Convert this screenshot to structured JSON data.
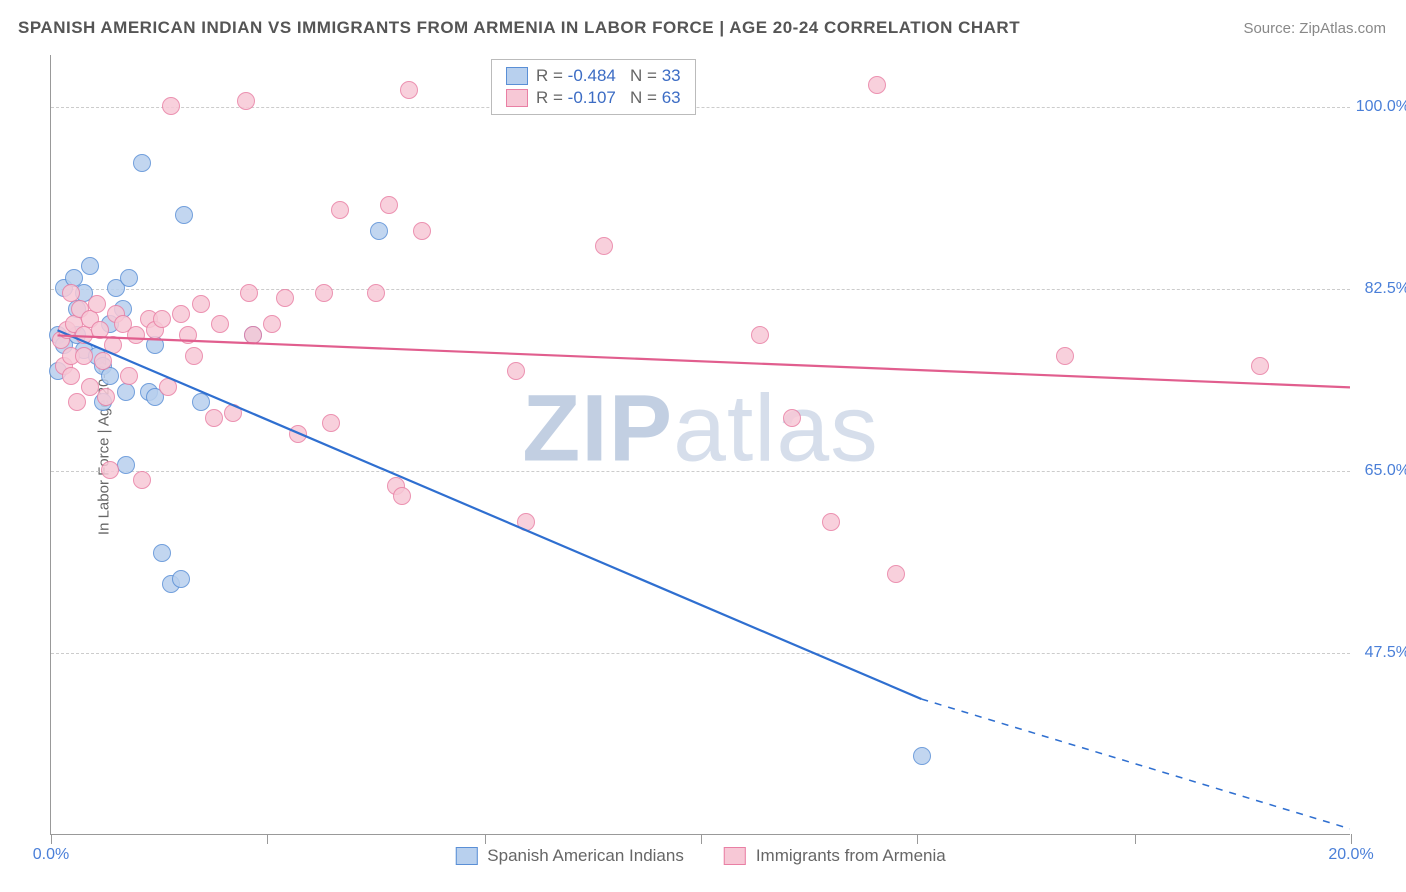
{
  "title": "SPANISH AMERICAN INDIAN VS IMMIGRANTS FROM ARMENIA IN LABOR FORCE | AGE 20-24 CORRELATION CHART",
  "source": "Source: ZipAtlas.com",
  "watermark_a": "ZIP",
  "watermark_b": "atlas",
  "y_axis_title": "In Labor Force | Age 20-24",
  "chart": {
    "type": "scatter",
    "xlim": [
      0,
      20
    ],
    "ylim": [
      30,
      105
    ],
    "x_ticks": [
      0,
      3.33,
      6.67,
      10,
      13.33,
      16.67,
      20
    ],
    "x_tick_labels": {
      "0": "0.0%",
      "20": "20.0%"
    },
    "y_gridlines": [
      47.5,
      65.0,
      82.5,
      100.0
    ],
    "y_tick_labels": [
      "47.5%",
      "65.0%",
      "82.5%",
      "100.0%"
    ],
    "grid_color": "#cccccc",
    "axis_color": "#999999",
    "background_color": "#ffffff",
    "marker_radius": 9,
    "marker_stroke_width": 1.6,
    "line_width": 2.2,
    "series": [
      {
        "name": "Spanish American Indians",
        "fill": "#b8d0ee",
        "stroke": "#5a8fd6",
        "fill_opacity": 0.55,
        "line_color": "#2f6fd0",
        "R": "-0.484",
        "N": "33",
        "trend": {
          "x1": 0.1,
          "y1": 78.5,
          "x2": 13.4,
          "y2": 43.0,
          "dash_x2": 20,
          "dash_y2": 30.5
        },
        "points": [
          [
            0.1,
            78
          ],
          [
            0.1,
            74.5
          ],
          [
            0.2,
            77
          ],
          [
            0.2,
            82.5
          ],
          [
            0.35,
            83.5
          ],
          [
            0.4,
            80.5
          ],
          [
            0.4,
            78
          ],
          [
            0.5,
            82
          ],
          [
            0.5,
            76.5
          ],
          [
            0.6,
            84.6
          ],
          [
            0.7,
            76
          ],
          [
            0.8,
            75
          ],
          [
            0.8,
            71.5
          ],
          [
            0.9,
            74
          ],
          [
            0.9,
            79
          ],
          [
            1.0,
            82.5
          ],
          [
            1.1,
            80.5
          ],
          [
            1.15,
            72.5
          ],
          [
            1.15,
            65.5
          ],
          [
            1.2,
            83.5
          ],
          [
            1.4,
            94.5
          ],
          [
            1.5,
            72.5
          ],
          [
            1.6,
            77
          ],
          [
            1.6,
            72
          ],
          [
            1.7,
            57
          ],
          [
            1.85,
            54
          ],
          [
            2.0,
            54.5
          ],
          [
            2.05,
            89.5
          ],
          [
            2.3,
            71.5
          ],
          [
            3.1,
            78
          ],
          [
            5.05,
            88
          ],
          [
            13.4,
            37.5
          ]
        ]
      },
      {
        "name": "Immigrants from Armenia",
        "fill": "#f7c8d6",
        "stroke": "#e97fa4",
        "fill_opacity": 0.55,
        "line_color": "#e15e8e",
        "R": "-0.107",
        "N": "63",
        "trend": {
          "x1": 0.1,
          "y1": 78.0,
          "x2": 20,
          "y2": 73.0
        },
        "points": [
          [
            0.15,
            77.5
          ],
          [
            0.2,
            75
          ],
          [
            0.25,
            78.5
          ],
          [
            0.3,
            82
          ],
          [
            0.3,
            76
          ],
          [
            0.3,
            74
          ],
          [
            0.35,
            79
          ],
          [
            0.4,
            71.5
          ],
          [
            0.45,
            80.5
          ],
          [
            0.5,
            78
          ],
          [
            0.5,
            76
          ],
          [
            0.6,
            79.5
          ],
          [
            0.6,
            73
          ],
          [
            0.7,
            81
          ],
          [
            0.75,
            78.5
          ],
          [
            0.8,
            75.5
          ],
          [
            0.85,
            72
          ],
          [
            0.9,
            65
          ],
          [
            0.95,
            77
          ],
          [
            1.0,
            80
          ],
          [
            1.1,
            79
          ],
          [
            1.2,
            74
          ],
          [
            1.3,
            78
          ],
          [
            1.4,
            64
          ],
          [
            1.5,
            79.5
          ],
          [
            1.6,
            78.5
          ],
          [
            1.7,
            79.5
          ],
          [
            1.8,
            73
          ],
          [
            1.85,
            100
          ],
          [
            2.0,
            80
          ],
          [
            2.1,
            78
          ],
          [
            2.2,
            76
          ],
          [
            2.3,
            81
          ],
          [
            2.5,
            70
          ],
          [
            2.6,
            79
          ],
          [
            2.8,
            70.5
          ],
          [
            3.0,
            100.5
          ],
          [
            3.05,
            82
          ],
          [
            3.1,
            78
          ],
          [
            3.4,
            79
          ],
          [
            3.6,
            81.5
          ],
          [
            3.8,
            68.5
          ],
          [
            4.2,
            82
          ],
          [
            4.3,
            69.5
          ],
          [
            4.45,
            90
          ],
          [
            5.0,
            82
          ],
          [
            5.2,
            90.5
          ],
          [
            5.3,
            63.5
          ],
          [
            5.4,
            62.5
          ],
          [
            5.5,
            101.5
          ],
          [
            5.7,
            88
          ],
          [
            7.15,
            74.5
          ],
          [
            7.3,
            60
          ],
          [
            8.5,
            86.5
          ],
          [
            10.9,
            78
          ],
          [
            11.4,
            70
          ],
          [
            12.0,
            60
          ],
          [
            12.7,
            102
          ],
          [
            13.0,
            55
          ],
          [
            15.6,
            76
          ],
          [
            18.6,
            75
          ]
        ]
      }
    ]
  },
  "legend_labels": {
    "R": "R =",
    "N": "N ="
  }
}
